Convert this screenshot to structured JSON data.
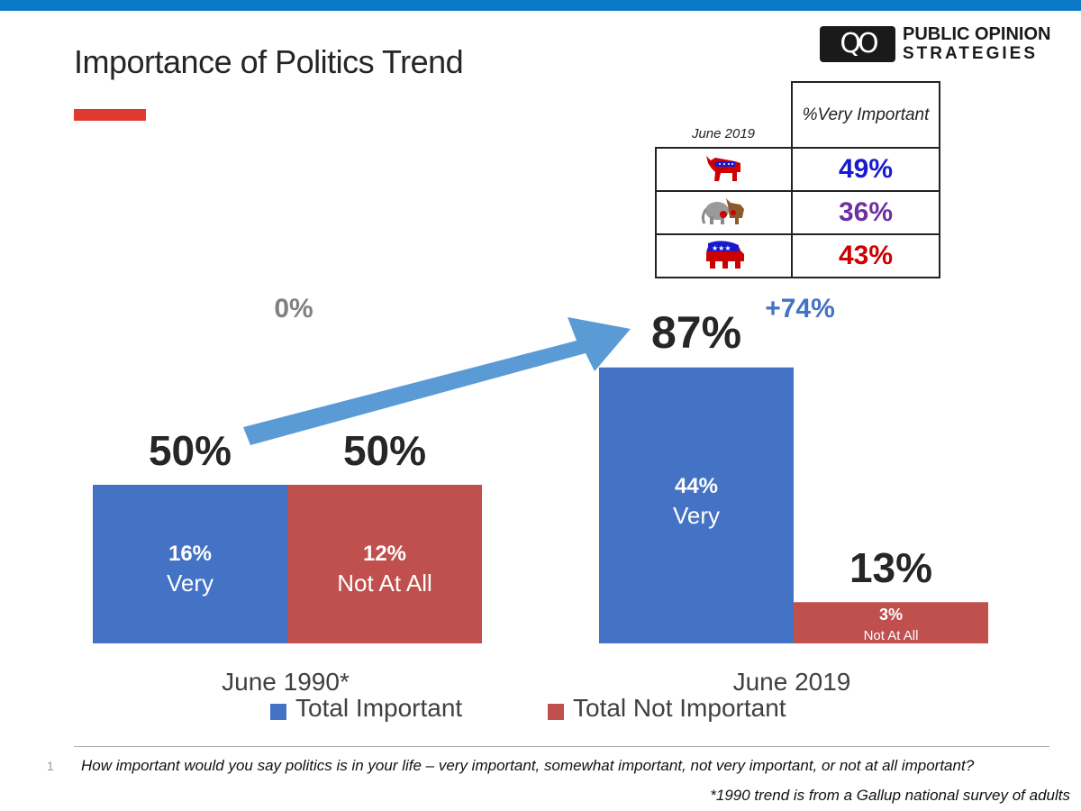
{
  "slide": {
    "title": "Importance of Politics Trend",
    "page_number": "1",
    "question": "How important would you say politics is in your life – very important, somewhat important, not very important, or not at all important?",
    "note": "*1990 trend is from a Gallup national survey of adults"
  },
  "logo": {
    "line1": "PUBLIC OPINION",
    "line2": "STRATEGIES"
  },
  "party_table": {
    "date_label": "June 2019",
    "column_header": "%Very Important",
    "rows": [
      {
        "icon": "democrat-donkey-icon",
        "value": "49%",
        "color": "#1a1acc"
      },
      {
        "icon": "independent-elephant-donkey-icon",
        "value": "36%",
        "color": "#7030a0"
      },
      {
        "icon": "republican-elephant-icon",
        "value": "43%",
        "color": "#cc0000"
      }
    ]
  },
  "colors": {
    "important": "#4472c4",
    "not_important": "#c0504d",
    "arrow": "#5b9bd5",
    "change_label": "#4472c4",
    "zero_label": "#808080"
  },
  "chart_data": {
    "type": "bar",
    "categories": [
      "June 1990*",
      "June 2019"
    ],
    "series": [
      {
        "name": "Total Important",
        "values": [
          50,
          87
        ],
        "labels": [
          "50%",
          "87%"
        ],
        "sub_values": [
          16,
          44
        ],
        "sub_labels": [
          "16%",
          "44%"
        ],
        "sub_text": "Very"
      },
      {
        "name": "Total Not Important",
        "values": [
          50,
          13
        ],
        "labels": [
          "50%",
          "13%"
        ],
        "sub_values": [
          12,
          3
        ],
        "sub_labels": [
          "12%",
          "3%"
        ],
        "sub_text": "Not At All"
      }
    ],
    "annotations": {
      "change_important": "+74%",
      "change_other": "0%"
    },
    "legend_position": "bottom",
    "grid": false
  }
}
